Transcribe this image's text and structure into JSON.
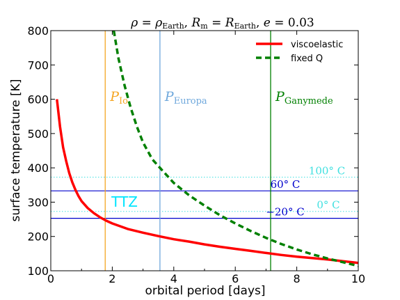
{
  "chart_data": {
    "type": "line",
    "title": "ρ = ρEarth, Rm = REarth, e = 0.03",
    "title_parts": {
      "rho": "ρ",
      "eq1": " = ",
      "rho2": "ρ",
      "earth1": "Earth",
      "comma1": ", ",
      "R1": "R",
      "m": "m",
      "eq2": " = ",
      "R2": "R",
      "earth2": "Earth",
      "comma2": ", ",
      "e": "e",
      "eq3": " = ",
      "eval": "0.03"
    },
    "xlabel": "orbital period [days]",
    "ylabel": "surface temperature [K]",
    "xlim": [
      0,
      10
    ],
    "ylim": [
      100,
      800
    ],
    "xticks": [
      0,
      2,
      4,
      6,
      8,
      10
    ],
    "yticks": [
      100,
      200,
      300,
      400,
      500,
      600,
      700,
      800
    ],
    "grid": false,
    "legend_position": "top-right",
    "series": [
      {
        "name": "viscoelastic",
        "color": "#ff0000",
        "style": "solid",
        "x": [
          0.2,
          0.3,
          0.4,
          0.5,
          0.6,
          0.7,
          0.8,
          0.9,
          1.0,
          1.2,
          1.4,
          1.6,
          1.8,
          2.0,
          2.5,
          3.0,
          3.5,
          4.0,
          4.5,
          5.0,
          5.5,
          6.0,
          6.5,
          7.0,
          7.5,
          8.0,
          8.5,
          9.0,
          9.5,
          10.0
        ],
        "y": [
          600,
          520,
          460,
          420,
          385,
          358,
          336,
          318,
          303,
          283,
          268,
          256,
          246,
          238,
          222,
          211,
          201,
          192,
          185,
          177,
          170,
          164,
          158,
          152,
          146,
          141,
          137,
          133,
          128,
          123
        ]
      },
      {
        "name": "fixed Q",
        "color": "#008000",
        "style": "dashed",
        "x": [
          2.05,
          2.2,
          2.4,
          2.6,
          2.8,
          3.0,
          3.3,
          3.55,
          4.0,
          4.5,
          5.0,
          5.5,
          6.0,
          6.5,
          7.0,
          7.5,
          8.0,
          8.5,
          9.0,
          9.5,
          10.0
        ],
        "y": [
          800,
          720,
          640,
          575,
          520,
          474,
          425,
          400,
          356,
          320,
          290,
          262,
          238,
          216,
          196,
          178,
          162,
          148,
          136,
          125,
          114
        ]
      }
    ],
    "vlines": [
      {
        "x": 1.77,
        "color": "#f5a623",
        "label_main": "P",
        "label_sub": "Io"
      },
      {
        "x": 3.55,
        "color": "#6fa8dc",
        "label_main": "P",
        "label_sub": "Europa"
      },
      {
        "x": 7.15,
        "color": "#008000",
        "label_main": "P",
        "label_sub": "Ganymede"
      }
    ],
    "hlines": [
      {
        "y": 373,
        "color": "#40e0e0",
        "style": "dotted",
        "label": "100° C"
      },
      {
        "y": 333,
        "color": "#0000cc",
        "style": "solid",
        "label": "60° C"
      },
      {
        "y": 273,
        "color": "#40e0e0",
        "style": "dotted",
        "label": "0° C"
      },
      {
        "y": 253,
        "color": "#0000cc",
        "style": "solid",
        "label": "−20° C"
      }
    ],
    "ttz_label": "TTZ",
    "ttz_color": "#00e5ff"
  }
}
